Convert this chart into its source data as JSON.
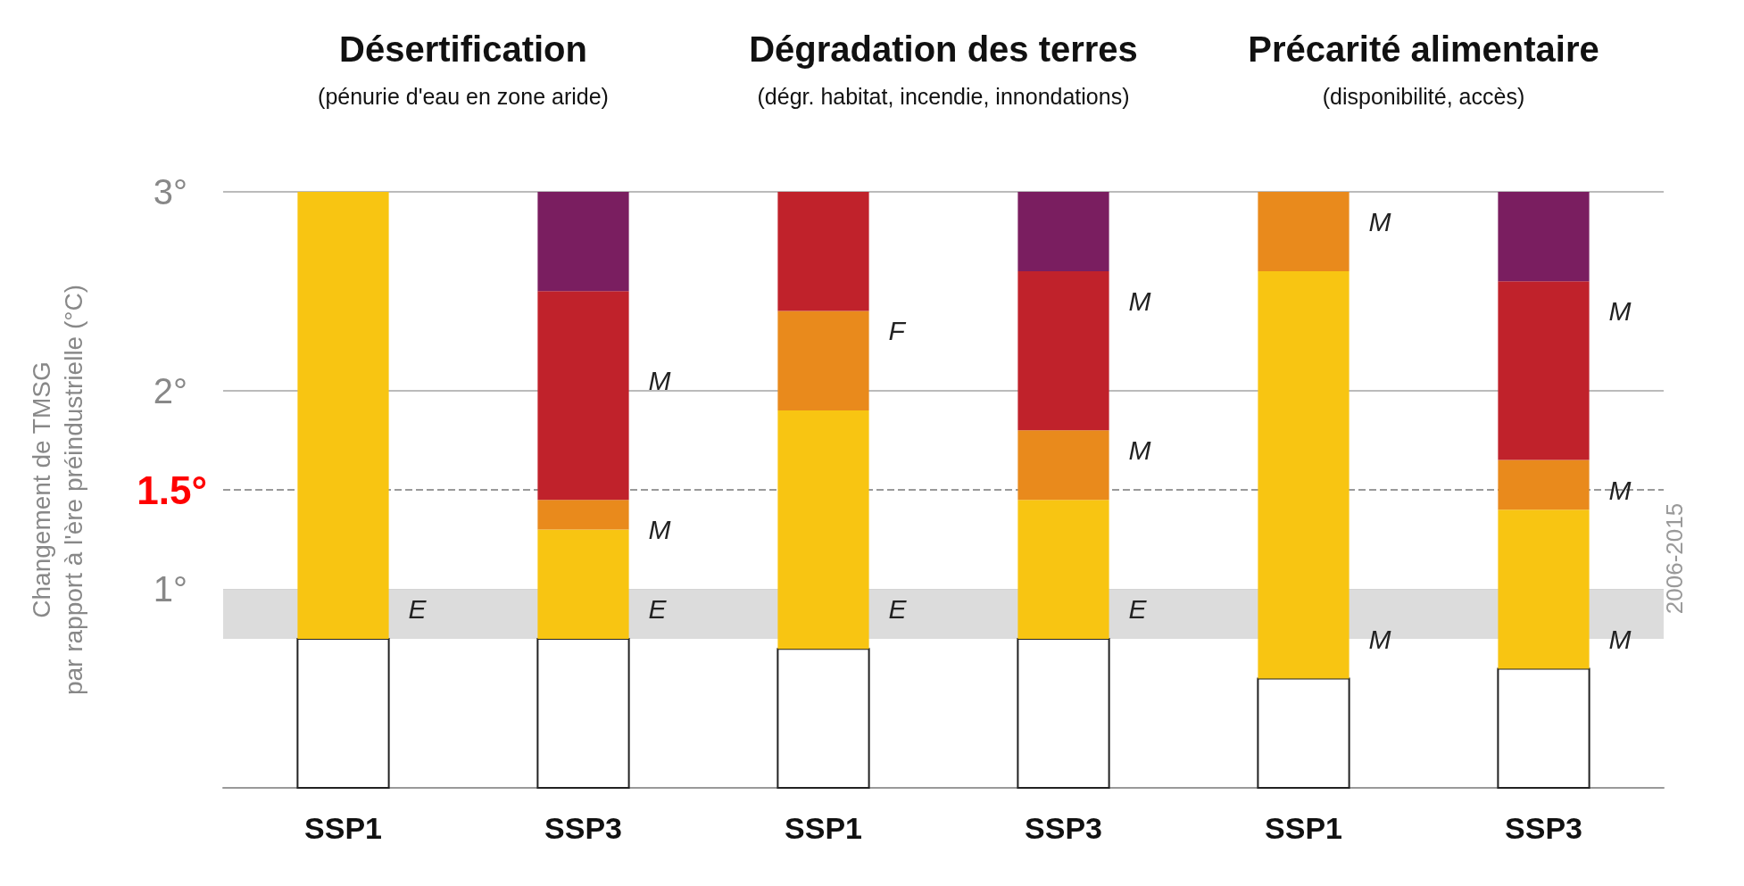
{
  "chart_data": {
    "type": "bar",
    "stacked": true,
    "categories": [
      "SSP1",
      "SSP3",
      "SSP1",
      "SSP3",
      "SSP1",
      "SSP3"
    ],
    "series": [
      {
        "color": "#ffffff",
        "values": [
          0.75,
          0.75,
          0.7,
          0.75,
          0.55,
          0.6
        ]
      },
      {
        "color": "#f8c512",
        "values": [
          2.25,
          0.55,
          1.2,
          0.7,
          2.05,
          0.8
        ]
      },
      {
        "color": "#e98a1c",
        "values": [
          null,
          0.15,
          0.5,
          0.35,
          0.4,
          0.25
        ]
      },
      {
        "color": "#c0222b",
        "values": [
          null,
          1.05,
          0.6,
          0.8,
          null,
          0.9
        ]
      },
      {
        "color": "#7a1e60",
        "values": [
          null,
          0.5,
          null,
          0.4,
          null,
          0.45
        ]
      }
    ],
    "ylabel": "Changement de TMSG\npar rapport à l'ère préindustrielle (°C)",
    "ylim": [
      0,
      3
    ],
    "yticks": [
      {
        "value": 1,
        "label": "1°"
      },
      {
        "value": 2,
        "label": "2°"
      },
      {
        "value": 3,
        "label": "3°"
      }
    ],
    "grid": "y",
    "ref_lines": [
      {
        "axis": "y",
        "value": 1.5,
        "label": "1.5°",
        "color": "#999999",
        "line_style": "dashed"
      }
    ],
    "bands": [
      {
        "axis": "y",
        "from": 0.75,
        "to": 1.0,
        "label": "2006-2015",
        "color": "#dcdcdc"
      }
    ],
    "annotations": [
      "Désertification",
      "(pénurie d'eau en zone aride)",
      "Dégradation des terres",
      "(dégr. habitat, incendie, innondations)",
      "Précarité alimentaire",
      "(disponibilité, accès)",
      "E",
      "M",
      "M",
      "E",
      "F",
      "E",
      "M",
      "M",
      "E",
      "M",
      "M",
      "M",
      "M",
      "M"
    ]
  }
}
